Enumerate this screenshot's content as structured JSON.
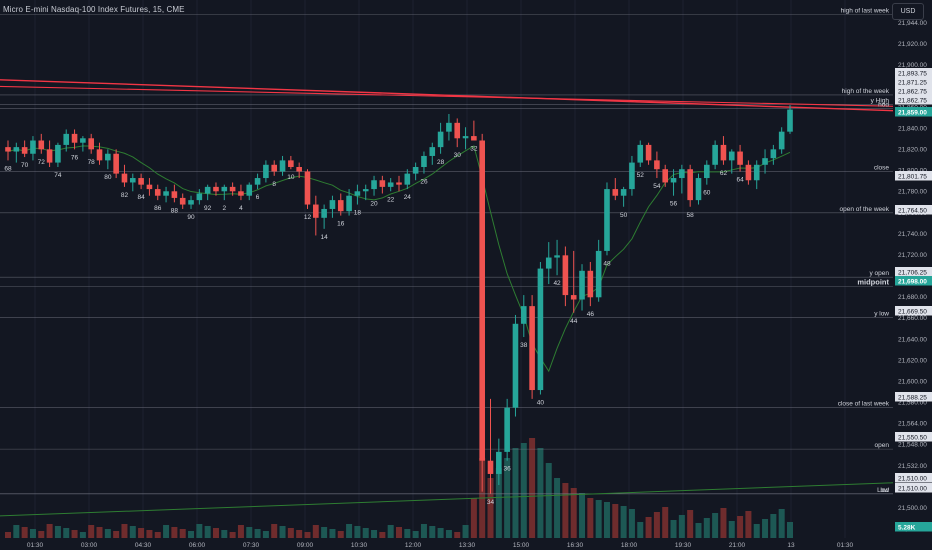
{
  "header": {
    "symbol_title": "Micro E-mini Nasdaq-100 Index Futures, 15, CME",
    "currency_button": "USD"
  },
  "colors": {
    "background": "#131722",
    "bull": "#26a69a",
    "bear": "#ef5350",
    "price_badge": "#26a69a",
    "level_line": "#787b86",
    "red_trendline": "#f23645",
    "green_trendline": "#2e7d32"
  },
  "price_axis": {
    "ticks": [
      "21,944.00",
      "21,920.00",
      "21,900.00",
      "21,880.00",
      "21,860.00",
      "21,840.00",
      "21,820.00",
      "21,800.00",
      "21,780.00",
      "21,760.00",
      "21,740.00",
      "21,720.00",
      "21,700.00",
      "21,680.00",
      "21,660.00",
      "21,640.00",
      "21,620.00",
      "21,600.00",
      "21,580.00",
      "21,564.00",
      "21,548.00",
      "21,532.00",
      "21,514.00",
      "21,500.00",
      "21,482.00"
    ],
    "badges": [
      {
        "text": "21,893.75",
        "highlight": false
      },
      {
        "text": "21,871.25",
        "highlight": false
      },
      {
        "text": "21,862.75",
        "highlight": false
      },
      {
        "text": "21,862.75",
        "highlight": false
      },
      {
        "text": "21,859.00",
        "highlight": true
      },
      {
        "text": "21,801.75",
        "highlight": false
      },
      {
        "text": "21,764.50",
        "highlight": false
      },
      {
        "text": "21,706.25",
        "highlight": false
      },
      {
        "text": "21,698.00",
        "highlight": true
      },
      {
        "text": "21,669.50",
        "highlight": false
      },
      {
        "text": "21,588.25",
        "highlight": false
      },
      {
        "text": "21,550.50",
        "highlight": false
      },
      {
        "text": "21,510.00",
        "highlight": false
      },
      {
        "text": "21,510.00",
        "highlight": false
      },
      {
        "text": "5.28K",
        "highlight": true
      }
    ]
  },
  "level_labels": [
    {
      "text": "high of last week",
      "v": 21944
    },
    {
      "text": "high of the week",
      "v": 21871.25
    },
    {
      "text": "y High",
      "v": 21862.75
    },
    {
      "text": "hod",
      "v": 21859
    },
    {
      "text": "close",
      "v": 21801.75
    },
    {
      "text": "open of the week",
      "v": 21764.5
    },
    {
      "text": "y open",
      "v": 21706.25
    },
    {
      "text": "midpoint",
      "v": 21698
    },
    {
      "text": "y low",
      "v": 21669.5
    },
    {
      "text": "close of last week",
      "v": 21588.25
    },
    {
      "text": "open",
      "v": 21550.5
    },
    {
      "text": "Low",
      "v": 21510
    },
    {
      "text": "lod",
      "v": 21510
    }
  ],
  "time_axis": {
    "labels": [
      "01:30",
      "03:00",
      "04:30",
      "06:00",
      "07:30",
      "09:00",
      "10:30",
      "12:00",
      "13:30",
      "15:00",
      "16:30",
      "18:00",
      "19:30",
      "21:00",
      "13",
      "01:30"
    ]
  },
  "chart_data": {
    "type": "candlestick",
    "price_range": [
      21470,
      21950
    ],
    "candles": [
      {
        "o": 21824,
        "h": 21830,
        "l": 21812,
        "c": 21820
      },
      {
        "o": 21820,
        "h": 21828,
        "l": 21810,
        "c": 21824
      },
      {
        "o": 21824,
        "h": 21830,
        "l": 21815,
        "c": 21818
      },
      {
        "o": 21818,
        "h": 21834,
        "l": 21812,
        "c": 21830
      },
      {
        "o": 21830,
        "h": 21836,
        "l": 21818,
        "c": 21822
      },
      {
        "o": 21822,
        "h": 21830,
        "l": 21806,
        "c": 21810
      },
      {
        "o": 21810,
        "h": 21828,
        "l": 21806,
        "c": 21826
      },
      {
        "o": 21826,
        "h": 21840,
        "l": 21820,
        "c": 21836
      },
      {
        "o": 21836,
        "h": 21840,
        "l": 21822,
        "c": 21828
      },
      {
        "o": 21828,
        "h": 21834,
        "l": 21820,
        "c": 21832
      },
      {
        "o": 21832,
        "h": 21836,
        "l": 21818,
        "c": 21822
      },
      {
        "o": 21822,
        "h": 21828,
        "l": 21808,
        "c": 21812
      },
      {
        "o": 21812,
        "h": 21822,
        "l": 21804,
        "c": 21818
      },
      {
        "o": 21818,
        "h": 21822,
        "l": 21796,
        "c": 21800
      },
      {
        "o": 21800,
        "h": 21808,
        "l": 21788,
        "c": 21792
      },
      {
        "o": 21792,
        "h": 21800,
        "l": 21784,
        "c": 21796
      },
      {
        "o": 21796,
        "h": 21800,
        "l": 21786,
        "c": 21790
      },
      {
        "o": 21790,
        "h": 21796,
        "l": 21780,
        "c": 21786
      },
      {
        "o": 21786,
        "h": 21790,
        "l": 21776,
        "c": 21780
      },
      {
        "o": 21780,
        "h": 21788,
        "l": 21774,
        "c": 21784
      },
      {
        "o": 21784,
        "h": 21790,
        "l": 21774,
        "c": 21778
      },
      {
        "o": 21778,
        "h": 21782,
        "l": 21768,
        "c": 21772
      },
      {
        "o": 21772,
        "h": 21780,
        "l": 21768,
        "c": 21776
      },
      {
        "o": 21776,
        "h": 21786,
        "l": 21772,
        "c": 21782
      },
      {
        "o": 21782,
        "h": 21790,
        "l": 21776,
        "c": 21788
      },
      {
        "o": 21788,
        "h": 21792,
        "l": 21780,
        "c": 21784
      },
      {
        "o": 21784,
        "h": 21790,
        "l": 21776,
        "c": 21788
      },
      {
        "o": 21788,
        "h": 21792,
        "l": 21780,
        "c": 21784
      },
      {
        "o": 21784,
        "h": 21790,
        "l": 21776,
        "c": 21780
      },
      {
        "o": 21780,
        "h": 21792,
        "l": 21776,
        "c": 21790
      },
      {
        "o": 21790,
        "h": 21800,
        "l": 21786,
        "c": 21796
      },
      {
        "o": 21796,
        "h": 21812,
        "l": 21792,
        "c": 21808
      },
      {
        "o": 21808,
        "h": 21812,
        "l": 21798,
        "c": 21802
      },
      {
        "o": 21802,
        "h": 21816,
        "l": 21798,
        "c": 21812
      },
      {
        "o": 21812,
        "h": 21816,
        "l": 21804,
        "c": 21806
      },
      {
        "o": 21806,
        "h": 21810,
        "l": 21796,
        "c": 21802
      },
      {
        "o": 21802,
        "h": 21804,
        "l": 21768,
        "c": 21772
      },
      {
        "o": 21772,
        "h": 21780,
        "l": 21744,
        "c": 21760
      },
      {
        "o": 21760,
        "h": 21772,
        "l": 21750,
        "c": 21768
      },
      {
        "o": 21768,
        "h": 21780,
        "l": 21760,
        "c": 21776
      },
      {
        "o": 21776,
        "h": 21782,
        "l": 21762,
        "c": 21766
      },
      {
        "o": 21766,
        "h": 21786,
        "l": 21762,
        "c": 21780
      },
      {
        "o": 21780,
        "h": 21790,
        "l": 21772,
        "c": 21784
      },
      {
        "o": 21784,
        "h": 21790,
        "l": 21776,
        "c": 21786
      },
      {
        "o": 21786,
        "h": 21798,
        "l": 21780,
        "c": 21794
      },
      {
        "o": 21794,
        "h": 21798,
        "l": 21782,
        "c": 21788
      },
      {
        "o": 21788,
        "h": 21796,
        "l": 21784,
        "c": 21792
      },
      {
        "o": 21792,
        "h": 21798,
        "l": 21784,
        "c": 21790
      },
      {
        "o": 21790,
        "h": 21804,
        "l": 21786,
        "c": 21800
      },
      {
        "o": 21800,
        "h": 21810,
        "l": 21794,
        "c": 21806
      },
      {
        "o": 21806,
        "h": 21820,
        "l": 21800,
        "c": 21816
      },
      {
        "o": 21816,
        "h": 21828,
        "l": 21808,
        "c": 21824
      },
      {
        "o": 21824,
        "h": 21846,
        "l": 21818,
        "c": 21838
      },
      {
        "o": 21838,
        "h": 21854,
        "l": 21830,
        "c": 21846
      },
      {
        "o": 21846,
        "h": 21850,
        "l": 21824,
        "c": 21832
      },
      {
        "o": 21832,
        "h": 21842,
        "l": 21822,
        "c": 21834
      },
      {
        "o": 21834,
        "h": 21848,
        "l": 21830,
        "c": 21830
      },
      {
        "o": 21830,
        "h": 21836,
        "l": 21512,
        "c": 21540
      },
      {
        "o": 21540,
        "h": 21596,
        "l": 21510,
        "c": 21528
      },
      {
        "o": 21528,
        "h": 21560,
        "l": 21518,
        "c": 21548
      },
      {
        "o": 21548,
        "h": 21596,
        "l": 21540,
        "c": 21588
      },
      {
        "o": 21588,
        "h": 21672,
        "l": 21580,
        "c": 21664
      },
      {
        "o": 21664,
        "h": 21690,
        "l": 21652,
        "c": 21680
      },
      {
        "o": 21680,
        "h": 21690,
        "l": 21596,
        "c": 21604
      },
      {
        "o": 21604,
        "h": 21720,
        "l": 21600,
        "c": 21714
      },
      {
        "o": 21714,
        "h": 21738,
        "l": 21700,
        "c": 21724
      },
      {
        "o": 21724,
        "h": 21740,
        "l": 21708,
        "c": 21726
      },
      {
        "o": 21726,
        "h": 21734,
        "l": 21680,
        "c": 21690
      },
      {
        "o": 21690,
        "h": 21730,
        "l": 21674,
        "c": 21686
      },
      {
        "o": 21686,
        "h": 21718,
        "l": 21676,
        "c": 21712
      },
      {
        "o": 21712,
        "h": 21720,
        "l": 21680,
        "c": 21688
      },
      {
        "o": 21688,
        "h": 21740,
        "l": 21684,
        "c": 21730
      },
      {
        "o": 21730,
        "h": 21792,
        "l": 21726,
        "c": 21786
      },
      {
        "o": 21786,
        "h": 21796,
        "l": 21776,
        "c": 21780
      },
      {
        "o": 21780,
        "h": 21788,
        "l": 21770,
        "c": 21786
      },
      {
        "o": 21786,
        "h": 21816,
        "l": 21780,
        "c": 21810
      },
      {
        "o": 21810,
        "h": 21830,
        "l": 21806,
        "c": 21826
      },
      {
        "o": 21826,
        "h": 21828,
        "l": 21808,
        "c": 21812
      },
      {
        "o": 21812,
        "h": 21820,
        "l": 21796,
        "c": 21804
      },
      {
        "o": 21804,
        "h": 21808,
        "l": 21788,
        "c": 21792
      },
      {
        "o": 21792,
        "h": 21804,
        "l": 21780,
        "c": 21796
      },
      {
        "o": 21796,
        "h": 21808,
        "l": 21782,
        "c": 21804
      },
      {
        "o": 21804,
        "h": 21808,
        "l": 21770,
        "c": 21776
      },
      {
        "o": 21776,
        "h": 21800,
        "l": 21772,
        "c": 21796
      },
      {
        "o": 21796,
        "h": 21812,
        "l": 21790,
        "c": 21808
      },
      {
        "o": 21808,
        "h": 21830,
        "l": 21804,
        "c": 21826
      },
      {
        "o": 21826,
        "h": 21834,
        "l": 21808,
        "c": 21812
      },
      {
        "o": 21812,
        "h": 21822,
        "l": 21800,
        "c": 21820
      },
      {
        "o": 21820,
        "h": 21826,
        "l": 21802,
        "c": 21808
      },
      {
        "o": 21808,
        "h": 21812,
        "l": 21790,
        "c": 21794
      },
      {
        "o": 21794,
        "h": 21812,
        "l": 21786,
        "c": 21808
      },
      {
        "o": 21808,
        "h": 21822,
        "l": 21800,
        "c": 21814
      },
      {
        "o": 21814,
        "h": 21826,
        "l": 21808,
        "c": 21822
      },
      {
        "o": 21822,
        "h": 21842,
        "l": 21818,
        "c": 21838
      },
      {
        "o": 21838,
        "h": 21862,
        "l": 21836,
        "c": 21858
      }
    ],
    "bar_numbers": [
      "68",
      "70",
      "72",
      "74",
      "76",
      "78",
      "80",
      "82",
      "84",
      "86",
      "88",
      "90",
      "92",
      "2",
      "4",
      "6",
      "8",
      "10",
      "12",
      "14",
      "16",
      "18",
      "20",
      "22",
      "24",
      "26",
      "28",
      "30",
      "32",
      "34",
      "36",
      "38",
      "40",
      "42",
      "44",
      "46",
      "48",
      "50",
      "52",
      "54",
      "56",
      "58",
      "60",
      "62",
      "64"
    ],
    "volume_label": "5.28K"
  }
}
